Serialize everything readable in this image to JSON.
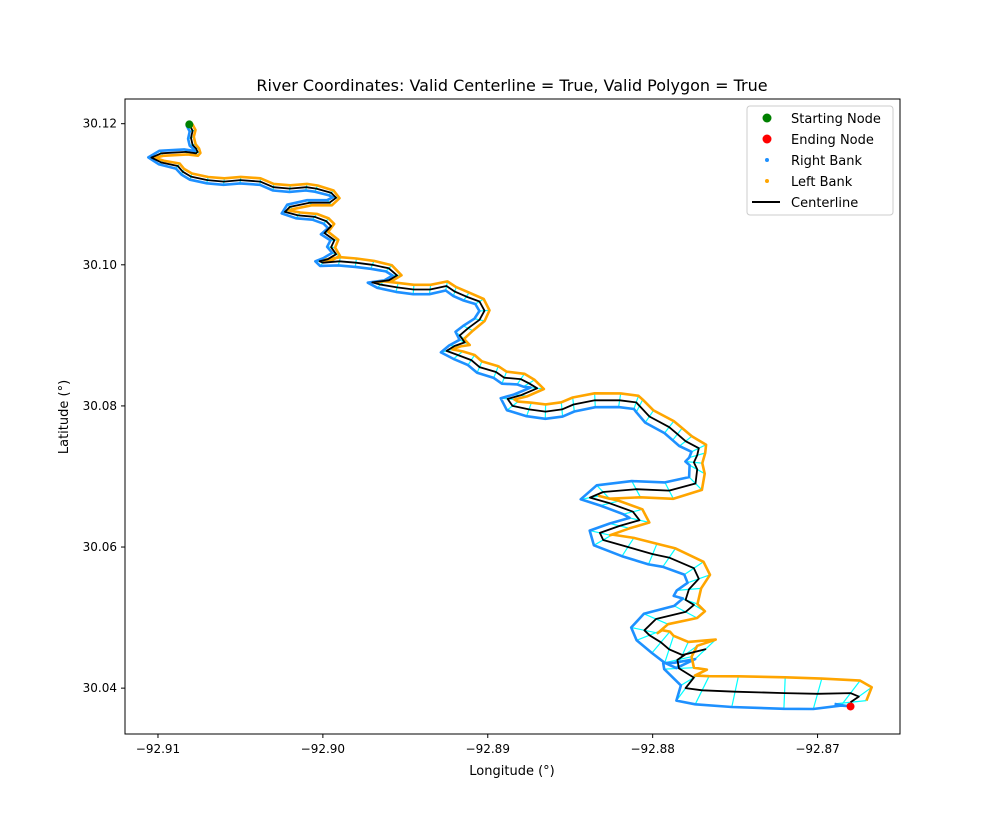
{
  "chart_data": {
    "type": "line",
    "title": "River Coordinates: Valid Centerline = True, Valid Polygon = True",
    "xlabel": "Longitude (°)",
    "ylabel": "Latitude (°)",
    "xlim": [
      -92.912,
      -92.865
    ],
    "ylim": [
      30.0335,
      30.1235
    ],
    "x_ticks": [
      {
        "value": -92.91,
        "label": "−92.91"
      },
      {
        "value": -92.9,
        "label": "−92.90"
      },
      {
        "value": -92.89,
        "label": "−92.89"
      },
      {
        "value": -92.88,
        "label": "−92.88"
      },
      {
        "value": -92.87,
        "label": "−92.87"
      }
    ],
    "y_ticks": [
      {
        "value": 30.04,
        "label": "30.04"
      },
      {
        "value": 30.06,
        "label": "30.06"
      },
      {
        "value": 30.08,
        "label": "30.08"
      },
      {
        "value": 30.1,
        "label": "30.10"
      },
      {
        "value": 30.12,
        "label": "30.12"
      }
    ],
    "grid": false,
    "legend_position": "top-right",
    "legend": [
      {
        "label": "Starting Node",
        "marker": "circle",
        "color": "#008000"
      },
      {
        "label": "Ending Node",
        "marker": "circle",
        "color": "#ff0000"
      },
      {
        "label": "Right Bank",
        "marker": "dot",
        "color": "#1e90ff"
      },
      {
        "label": "Left Bank",
        "marker": "dot",
        "color": "#ffa500"
      },
      {
        "label": "Centerline",
        "marker": "line",
        "color": "#000000"
      }
    ],
    "transect_color": "#00ffff",
    "starting_node": {
      "x": -92.9081,
      "y": 30.1199,
      "color": "#008000"
    },
    "ending_node": {
      "x": -92.868,
      "y": 30.0374,
      "color": "#ff0000"
    },
    "centerline": {
      "name": "Centerline",
      "color": "#000000",
      "x": [
        -92.9081,
        -92.9079,
        -92.908,
        -92.9079,
        -92.9077,
        -92.9076,
        -92.9077,
        -92.9083,
        -92.9098,
        -92.9104,
        -92.9098,
        -92.9088,
        -92.9085,
        -92.908,
        -92.907,
        -92.906,
        -92.905,
        -92.9038,
        -92.903,
        -92.902,
        -92.901,
        -92.9004,
        -92.8995,
        -92.8992,
        -92.8996,
        -92.9008,
        -92.902,
        -92.9023,
        -92.9015,
        -92.9005,
        -92.8998,
        -92.8995,
        -92.8999,
        -92.8993,
        -92.8995,
        -92.8992,
        -92.8997,
        -92.9002,
        -92.9,
        -92.899,
        -92.898,
        -92.897,
        -92.896,
        -92.8955,
        -92.896,
        -92.897,
        -92.8965,
        -92.8955,
        -92.8945,
        -92.8935,
        -92.8925,
        -92.892,
        -92.8913,
        -92.8905,
        -92.8902,
        -92.8905,
        -92.8912,
        -92.8917,
        -92.8914,
        -92.892,
        -92.8925,
        -92.8918,
        -92.891,
        -92.8905,
        -92.8895,
        -92.889,
        -92.888,
        -92.8875,
        -92.887,
        -92.888,
        -92.8888,
        -92.8885,
        -92.8875,
        -92.8865,
        -92.8855,
        -92.8848,
        -92.8835,
        -92.882,
        -92.881,
        -92.8808,
        -92.8802,
        -92.879,
        -92.8785,
        -92.878,
        -92.8772,
        -92.8773,
        -92.8775,
        -92.8773,
        -92.8774,
        -92.879,
        -92.881,
        -92.883,
        -92.8838,
        -92.8826,
        -92.8812,
        -92.8808,
        -92.882,
        -92.8832,
        -92.883,
        -92.8815,
        -92.88,
        -92.879,
        -92.8775,
        -92.8772,
        -92.8778,
        -92.878,
        -92.8775,
        -92.878,
        -92.8798,
        -92.8805,
        -92.8802,
        -92.8795,
        -92.879,
        -92.8782,
        -92.8768,
        -92.878,
        -92.8785,
        -92.8784,
        -92.8775,
        -92.878,
        -92.877,
        -92.875,
        -92.872,
        -92.87,
        -92.868,
        -92.8675,
        -92.868
      ],
      "y": [
        30.1199,
        30.119,
        30.118,
        30.117,
        30.1165,
        30.116,
        30.1158,
        30.116,
        30.1158,
        30.1152,
        30.1145,
        30.114,
        30.1132,
        30.1125,
        30.112,
        30.1118,
        30.112,
        30.1118,
        30.111,
        30.1108,
        30.111,
        30.1108,
        30.1102,
        30.1095,
        30.1088,
        30.1088,
        30.1082,
        30.1075,
        30.107,
        30.1068,
        30.1062,
        30.1055,
        30.1045,
        30.1035,
        30.1025,
        30.1015,
        30.1008,
        30.1005,
        30.1003,
        30.1005,
        30.1003,
        30.1,
        30.0995,
        30.0985,
        30.0978,
        30.0975,
        30.0972,
        30.0968,
        30.0965,
        30.0965,
        30.097,
        30.0962,
        30.0955,
        30.0948,
        30.0935,
        30.0922,
        30.091,
        30.09,
        30.089,
        30.0885,
        30.0878,
        30.0872,
        30.0865,
        30.0855,
        30.0848,
        30.084,
        30.0838,
        30.0832,
        30.0825,
        30.0815,
        30.081,
        30.08,
        30.0795,
        30.0792,
        30.0795,
        30.0802,
        30.0808,
        30.0808,
        30.0805,
        30.08,
        30.0785,
        30.077,
        30.076,
        30.075,
        30.074,
        30.073,
        30.072,
        30.071,
        30.069,
        30.068,
        30.0682,
        30.0678,
        30.067,
        30.0662,
        30.065,
        30.0638,
        30.063,
        30.062,
        30.061,
        30.06,
        30.059,
        30.0585,
        30.057,
        30.0555,
        30.054,
        30.0525,
        30.0518,
        30.0508,
        30.0498,
        30.0482,
        30.0475,
        30.0465,
        30.0455,
        30.0447,
        30.0455,
        30.0448,
        30.044,
        30.0428,
        30.0415,
        30.04,
        30.0397,
        30.0395,
        30.0393,
        30.0392,
        30.0393,
        30.0388,
        30.038
      ]
    },
    "right_bank": {
      "name": "Right Bank",
      "color": "#1e90ff"
    },
    "left_bank": {
      "name": "Left Bank",
      "color": "#ffa500"
    }
  }
}
